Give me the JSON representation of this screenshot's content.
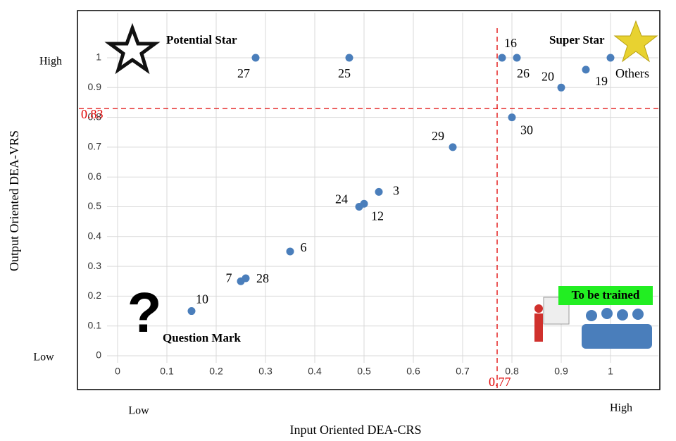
{
  "chart_data": {
    "type": "scatter",
    "x_axis_label": "Input Oriented DEA-CRS",
    "y_axis_label": "Output Oriented DEA-VRS",
    "x_level_labels": [
      "Low",
      "High"
    ],
    "y_level_labels": [
      "Low",
      "High"
    ],
    "quadrants": [
      "Potential Star",
      "Super Star",
      "Question Mark",
      "To be trained"
    ],
    "x_threshold": 0.77,
    "y_threshold": 0.83,
    "color": "#4a7ebb",
    "labels": [
      "27",
      "25",
      "16",
      "26",
      "Others",
      "20",
      "19",
      "30",
      "29",
      "3",
      "24",
      "12",
      "6",
      "7",
      "28",
      "10"
    ],
    "x": [
      0.28,
      0.47,
      0.78,
      0.81,
      1.0,
      0.9,
      0.95,
      0.8,
      0.68,
      0.53,
      0.49,
      0.5,
      0.35,
      0.25,
      0.26,
      0.15
    ],
    "y": [
      1.0,
      1.0,
      1.0,
      1.0,
      1.0,
      0.9,
      0.96,
      0.8,
      0.7,
      0.55,
      0.5,
      0.51,
      0.35,
      0.25,
      0.26,
      0.15
    ],
    "xlim": [
      0,
      1.1
    ],
    "ylim": [
      0,
      1.15
    ],
    "xticks": [
      0,
      0.1,
      0.2,
      0.3,
      0.4,
      0.5,
      0.6,
      0.7,
      0.8,
      0.9,
      1
    ],
    "yticks": [
      0,
      0.1,
      0.2,
      0.3,
      0.4,
      0.5,
      0.6,
      0.7,
      0.8,
      0.9,
      1
    ],
    "grid": true
  }
}
